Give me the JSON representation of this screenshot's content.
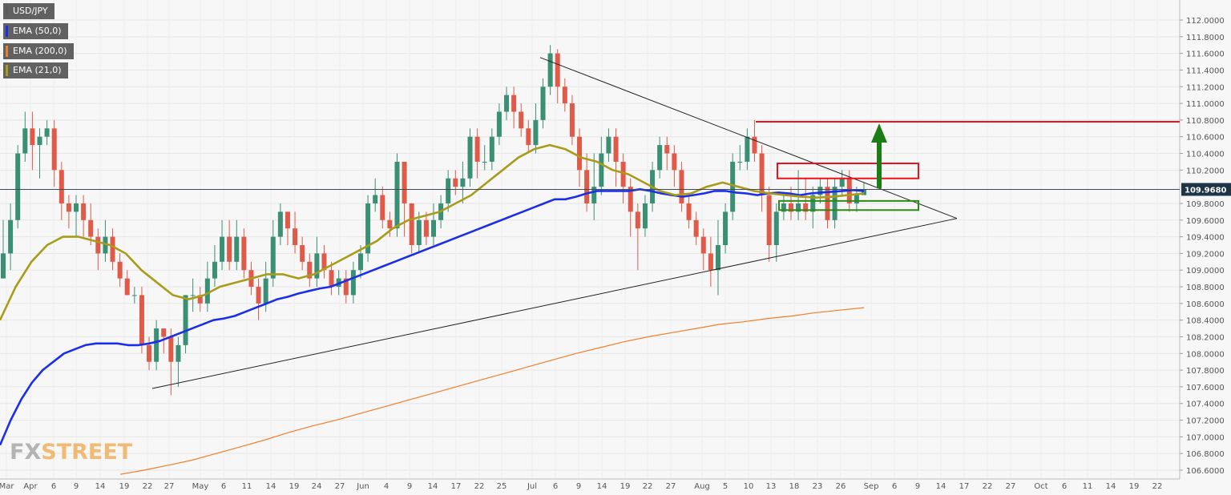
{
  "chart_data": {
    "type": "candlestick",
    "symbol": "USD/JPY",
    "last_price": "109.9680",
    "x_tick_labels": [
      "Mar",
      "Apr",
      "6",
      "9",
      "14",
      "19",
      "22",
      "27",
      "May",
      "6",
      "11",
      "14",
      "19",
      "24",
      "27",
      "Jun",
      "4",
      "9",
      "14",
      "17",
      "22",
      "25",
      "Jul",
      "6",
      "9",
      "14",
      "19",
      "22",
      "27",
      "Aug",
      "5",
      "10",
      "13",
      "18",
      "23",
      "26",
      "Sep",
      "6",
      "9",
      "14",
      "17",
      "22",
      "27",
      "Oct",
      "6",
      "11",
      "14",
      "19",
      "22"
    ],
    "y_tick_labels": [
      "112.0000",
      "111.8000",
      "111.6000",
      "111.4000",
      "111.2000",
      "111.0000",
      "110.8000",
      "110.6000",
      "110.4000",
      "110.2000",
      "109.8000",
      "109.6000",
      "109.4000",
      "109.2000",
      "109.0000",
      "108.8000",
      "108.6000",
      "108.4000",
      "108.2000",
      "108.0000",
      "107.8000",
      "107.6000",
      "107.4000",
      "107.2000",
      "107.0000",
      "106.8000",
      "106.6000"
    ],
    "ylim": [
      106.55,
      112.15
    ],
    "candles": [
      [
        108.9,
        109.2,
        109.6,
        108.9
      ],
      [
        109.2,
        109.6,
        109.8,
        109.0
      ],
      [
        109.6,
        110.4,
        110.5,
        109.5
      ],
      [
        110.4,
        110.7,
        110.9,
        110.3
      ],
      [
        110.7,
        110.5,
        110.9,
        110.2
      ],
      [
        110.5,
        110.6,
        110.7,
        110.1
      ],
      [
        110.6,
        110.7,
        110.8,
        110.5
      ],
      [
        110.7,
        110.2,
        110.8,
        110.0
      ],
      [
        110.2,
        109.8,
        110.3,
        109.6
      ],
      [
        109.8,
        109.7,
        109.9,
        109.5
      ],
      [
        109.7,
        109.8,
        109.9,
        109.4
      ],
      [
        109.8,
        109.6,
        109.9,
        109.4
      ],
      [
        109.6,
        109.4,
        109.8,
        109.3
      ],
      [
        109.4,
        109.2,
        109.5,
        109.0
      ],
      [
        109.2,
        109.4,
        109.6,
        109.1
      ],
      [
        109.4,
        109.1,
        109.5,
        109.0
      ],
      [
        109.1,
        108.9,
        109.2,
        108.8
      ],
      [
        108.9,
        108.7,
        109.0,
        108.7
      ],
      [
        108.7,
        108.7,
        108.8,
        108.6
      ],
      [
        108.7,
        108.1,
        108.8,
        108.0
      ],
      [
        108.1,
        107.9,
        108.2,
        107.8
      ],
      [
        107.9,
        108.3,
        108.4,
        107.8
      ],
      [
        108.3,
        108.2,
        108.3,
        108.0
      ],
      [
        108.2,
        107.9,
        108.3,
        107.5
      ],
      [
        107.9,
        108.1,
        108.2,
        107.6
      ],
      [
        108.1,
        108.7,
        108.7,
        108.0
      ],
      [
        108.7,
        108.7,
        108.9,
        108.5
      ],
      [
        108.7,
        108.6,
        108.8,
        108.5
      ],
      [
        108.6,
        108.9,
        109.1,
        108.5
      ],
      [
        108.9,
        109.1,
        109.3,
        108.8
      ],
      [
        109.1,
        109.4,
        109.6,
        109.0
      ],
      [
        109.4,
        109.1,
        109.6,
        109.0
      ],
      [
        109.1,
        109.4,
        109.6,
        109.0
      ],
      [
        109.4,
        109.0,
        109.5,
        108.9
      ],
      [
        109.0,
        108.8,
        109.1,
        108.7
      ],
      [
        108.8,
        108.6,
        108.9,
        108.4
      ],
      [
        108.6,
        108.9,
        109.1,
        108.5
      ],
      [
        108.9,
        109.4,
        109.6,
        108.8
      ],
      [
        109.4,
        109.7,
        109.8,
        109.3
      ],
      [
        109.7,
        109.5,
        109.7,
        109.3
      ],
      [
        109.5,
        109.3,
        109.7,
        109.2
      ],
      [
        109.3,
        109.1,
        109.4,
        109.0
      ],
      [
        109.1,
        108.9,
        109.2,
        108.8
      ],
      [
        108.9,
        109.2,
        109.4,
        108.8
      ],
      [
        109.2,
        109.0,
        109.3,
        108.9
      ],
      [
        109.0,
        108.8,
        109.1,
        108.7
      ],
      [
        108.8,
        108.9,
        109.0,
        108.7
      ],
      [
        108.9,
        108.7,
        109.0,
        108.6
      ],
      [
        108.7,
        109.0,
        109.1,
        108.6
      ],
      [
        109.0,
        109.2,
        109.3,
        108.9
      ],
      [
        109.2,
        109.8,
        109.9,
        109.1
      ],
      [
        109.8,
        109.9,
        110.1,
        109.7
      ],
      [
        109.9,
        109.6,
        110.0,
        109.5
      ],
      [
        109.6,
        109.5,
        109.7,
        109.4
      ],
      [
        109.5,
        110.3,
        110.4,
        109.4
      ],
      [
        110.3,
        109.8,
        110.3,
        109.4
      ],
      [
        109.8,
        109.3,
        109.8,
        109.2
      ],
      [
        109.3,
        109.6,
        109.7,
        109.2
      ],
      [
        109.6,
        109.4,
        109.7,
        109.3
      ],
      [
        109.4,
        109.6,
        109.8,
        109.3
      ],
      [
        109.6,
        109.8,
        109.9,
        109.5
      ],
      [
        109.8,
        110.1,
        110.2,
        109.7
      ],
      [
        110.1,
        110.0,
        110.2,
        109.9
      ],
      [
        110.0,
        110.1,
        110.3,
        109.8
      ],
      [
        110.1,
        110.6,
        110.7,
        110.0
      ],
      [
        110.6,
        110.3,
        110.7,
        110.1
      ],
      [
        110.3,
        110.3,
        110.5,
        110.2
      ],
      [
        110.3,
        110.6,
        110.7,
        110.2
      ],
      [
        110.6,
        110.9,
        111.0,
        110.5
      ],
      [
        110.9,
        111.1,
        111.2,
        110.8
      ],
      [
        111.1,
        110.9,
        111.2,
        110.7
      ],
      [
        110.9,
        110.7,
        111.0,
        110.6
      ],
      [
        110.7,
        110.5,
        110.8,
        110.4
      ],
      [
        110.5,
        110.8,
        111.0,
        110.4
      ],
      [
        110.8,
        111.2,
        111.3,
        110.7
      ],
      [
        111.2,
        111.6,
        111.7,
        111.1
      ],
      [
        111.6,
        111.2,
        111.65,
        111.0
      ],
      [
        111.2,
        111.0,
        111.3,
        110.9
      ],
      [
        111.0,
        110.6,
        111.1,
        110.5
      ],
      [
        110.6,
        110.2,
        110.7,
        110.0
      ],
      [
        110.2,
        109.8,
        110.4,
        109.7
      ],
      [
        109.8,
        110.0,
        110.4,
        109.6
      ],
      [
        110.0,
        110.4,
        110.6,
        109.9
      ],
      [
        110.4,
        110.6,
        110.7,
        110.3
      ],
      [
        110.6,
        110.3,
        110.7,
        110.0
      ],
      [
        110.3,
        110.0,
        110.4,
        109.8
      ],
      [
        110.0,
        109.7,
        110.1,
        109.4
      ],
      [
        109.7,
        109.5,
        109.8,
        109.0
      ],
      [
        109.5,
        109.8,
        109.9,
        109.4
      ],
      [
        109.8,
        110.2,
        110.3,
        109.7
      ],
      [
        110.2,
        110.5,
        110.6,
        110.1
      ],
      [
        110.5,
        110.4,
        110.6,
        110.2
      ],
      [
        110.4,
        110.2,
        110.5,
        110.0
      ],
      [
        110.2,
        109.8,
        110.3,
        109.7
      ],
      [
        109.8,
        109.6,
        109.9,
        109.5
      ],
      [
        109.6,
        109.4,
        109.7,
        109.3
      ],
      [
        109.4,
        109.2,
        109.5,
        109.0
      ],
      [
        109.2,
        109.0,
        109.4,
        108.8
      ],
      [
        109.0,
        109.3,
        109.6,
        108.7
      ],
      [
        109.3,
        109.7,
        109.8,
        109.2
      ],
      [
        109.7,
        110.3,
        110.4,
        109.6
      ],
      [
        110.3,
        110.3,
        110.5,
        110.2
      ],
      [
        110.3,
        110.6,
        110.7,
        110.2
      ],
      [
        110.6,
        110.4,
        110.8,
        110.3
      ],
      [
        110.4,
        109.9,
        110.5,
        109.7
      ],
      [
        109.9,
        109.3,
        110.0,
        109.1
      ],
      [
        109.3,
        109.7,
        109.8,
        109.1
      ],
      [
        109.7,
        109.8,
        109.9,
        109.6
      ],
      [
        109.8,
        109.7,
        110.0,
        109.6
      ],
      [
        109.7,
        109.8,
        110.2,
        109.6
      ],
      [
        109.8,
        109.7,
        110.1,
        109.6
      ],
      [
        109.7,
        109.9,
        110.0,
        109.5
      ],
      [
        109.9,
        110.0,
        110.1,
        109.8
      ],
      [
        110.0,
        109.6,
        110.1,
        109.5
      ],
      [
        109.6,
        110.0,
        110.1,
        109.5
      ],
      [
        110.0,
        110.1,
        110.2,
        109.9
      ],
      [
        110.1,
        109.8,
        110.2,
        109.7
      ],
      [
        109.8,
        109.9,
        110.0,
        109.7
      ],
      [
        109.9,
        109.97,
        110.05,
        109.9
      ]
    ],
    "series": [
      {
        "name": "EMA (50,0)",
        "color": "#1b2ee8",
        "values": [
          106.9,
          107.2,
          107.45,
          107.65,
          107.8,
          107.9,
          108.0,
          108.05,
          108.1,
          108.12,
          108.12,
          108.12,
          108.1,
          108.1,
          108.12,
          108.15,
          108.2,
          108.25,
          108.3,
          108.35,
          108.4,
          108.42,
          108.45,
          108.5,
          108.55,
          108.6,
          108.65,
          108.68,
          108.72,
          108.75,
          108.78,
          108.8,
          108.85,
          108.9,
          108.95,
          109.0,
          109.05,
          109.1,
          109.15,
          109.2,
          109.25,
          109.3,
          109.35,
          109.4,
          109.45,
          109.5,
          109.55,
          109.6,
          109.65,
          109.7,
          109.75,
          109.8,
          109.85,
          109.85,
          109.88,
          109.92,
          109.95,
          109.95,
          109.95,
          109.95,
          109.97,
          109.95,
          109.92,
          109.9,
          109.88,
          109.9,
          109.92,
          109.95,
          109.95,
          109.93,
          109.92,
          109.9,
          109.92,
          109.93,
          109.92,
          109.9,
          109.92,
          109.93,
          109.94,
          109.95,
          109.96,
          109.95
        ]
      },
      {
        "name": "EMA (200,0)",
        "color": "#f07f2a",
        "values": [
          106.55,
          106.6,
          106.66,
          106.72,
          106.8,
          106.88,
          106.96,
          107.05,
          107.13,
          107.2,
          107.28,
          107.36,
          107.44,
          107.52,
          107.6,
          107.68,
          107.76,
          107.84,
          107.92,
          108.0,
          108.07,
          108.14,
          108.2,
          108.25,
          108.3,
          108.35,
          108.38,
          108.42,
          108.45,
          108.49,
          108.52,
          108.55
        ]
      },
      {
        "name": "EMA (21,0)",
        "color": "#a89c1a",
        "values": [
          108.4,
          108.8,
          109.1,
          109.3,
          109.4,
          109.4,
          109.35,
          109.3,
          109.2,
          109.0,
          108.85,
          108.7,
          108.65,
          108.7,
          108.8,
          108.85,
          108.9,
          108.95,
          108.95,
          108.9,
          108.95,
          109.05,
          109.15,
          109.25,
          109.35,
          109.5,
          109.6,
          109.65,
          109.7,
          109.8,
          109.9,
          110.05,
          110.2,
          110.35,
          110.45,
          110.5,
          110.45,
          110.35,
          110.3,
          110.2,
          110.15,
          110.05,
          109.95,
          109.9,
          109.92,
          110.0,
          110.05,
          110.0,
          109.95,
          109.92,
          109.9,
          109.88,
          109.87,
          109.88,
          109.9,
          109.92
        ]
      }
    ]
  },
  "legend": [
    {
      "label": "USD/JPY",
      "color": "#5c5c5c"
    },
    {
      "label": "EMA (50,0)",
      "color": "#1b2ee8"
    },
    {
      "label": "EMA (200,0)",
      "color": "#f07f2a"
    },
    {
      "label": "EMA (21,0)",
      "color": "#a89c1a"
    }
  ],
  "price_badge": "109.9680",
  "watermark": {
    "part1": "FX",
    "part2": "STREET"
  },
  "colors": {
    "bull": "#3a8f74",
    "bear": "#df5a49",
    "axis_text": "#555555",
    "grid": "#e6e6e6",
    "background": "#f7f7f7",
    "red_box": "#e8131c",
    "green_box": "#2b8a13",
    "arrow": "#1a7e14"
  }
}
